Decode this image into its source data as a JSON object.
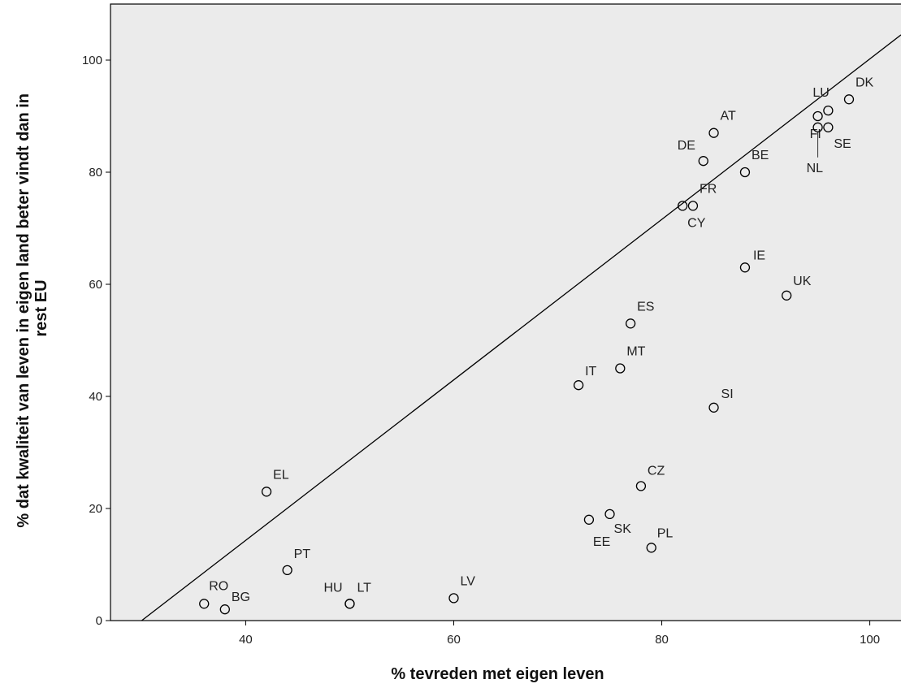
{
  "chart_data": {
    "type": "scatter",
    "xlabel": "% tevreden met eigen leven",
    "ylabel_lines": [
      "% dat kwaliteit van leven in eigen land beter vindt dan in",
      "rest EU"
    ],
    "xlim": [
      27,
      103
    ],
    "ylim": [
      0,
      110
    ],
    "x_ticks": [
      40,
      60,
      80,
      100
    ],
    "y_ticks": [
      0,
      20,
      40,
      60,
      80,
      100
    ],
    "x_tick_labels": [
      "40",
      "60",
      "80",
      "100"
    ],
    "y_tick_labels": [
      "0",
      "20",
      "40",
      "60",
      "80",
      "100"
    ],
    "grid": false,
    "colors": {
      "plot_background": "#ebebeb",
      "marker": "#000000",
      "line": "#000000",
      "frame": "#000000"
    },
    "fit_line": {
      "x": [
        30,
        103
      ],
      "y": [
        0,
        104.5
      ]
    },
    "points": [
      {
        "label": "DK",
        "x": 98,
        "y": 93
      },
      {
        "label": "LU",
        "x": 96,
        "y": 91
      },
      {
        "label": "FI",
        "x": 95,
        "y": 90
      },
      {
        "label": "SE",
        "x": 96,
        "y": 88
      },
      {
        "label": "NL",
        "x": 95,
        "y": 88
      },
      {
        "label": "AT",
        "x": 85,
        "y": 87
      },
      {
        "label": "DE",
        "x": 84,
        "y": 82
      },
      {
        "label": "BE",
        "x": 88,
        "y": 80
      },
      {
        "label": "FR",
        "x": 83,
        "y": 74
      },
      {
        "label": "CY",
        "x": 82,
        "y": 74
      },
      {
        "label": "IE",
        "x": 88,
        "y": 63
      },
      {
        "label": "UK",
        "x": 92,
        "y": 58
      },
      {
        "label": "ES",
        "x": 77,
        "y": 53
      },
      {
        "label": "MT",
        "x": 76,
        "y": 45
      },
      {
        "label": "IT",
        "x": 72,
        "y": 42
      },
      {
        "label": "SI",
        "x": 85,
        "y": 38
      },
      {
        "label": "CZ",
        "x": 78,
        "y": 24
      },
      {
        "label": "EL",
        "x": 42,
        "y": 23
      },
      {
        "label": "SK",
        "x": 75,
        "y": 19
      },
      {
        "label": "EE",
        "x": 73,
        "y": 18
      },
      {
        "label": "PL",
        "x": 79,
        "y": 13
      },
      {
        "label": "PT",
        "x": 44,
        "y": 9
      },
      {
        "label": "LV",
        "x": 60,
        "y": 4
      },
      {
        "label": "HU",
        "x": 50,
        "y": 3
      },
      {
        "label": "LT",
        "x": 50,
        "y": 3
      },
      {
        "label": "RO",
        "x": 36,
        "y": 3
      },
      {
        "label": "BG",
        "x": 38,
        "y": 2
      }
    ]
  }
}
